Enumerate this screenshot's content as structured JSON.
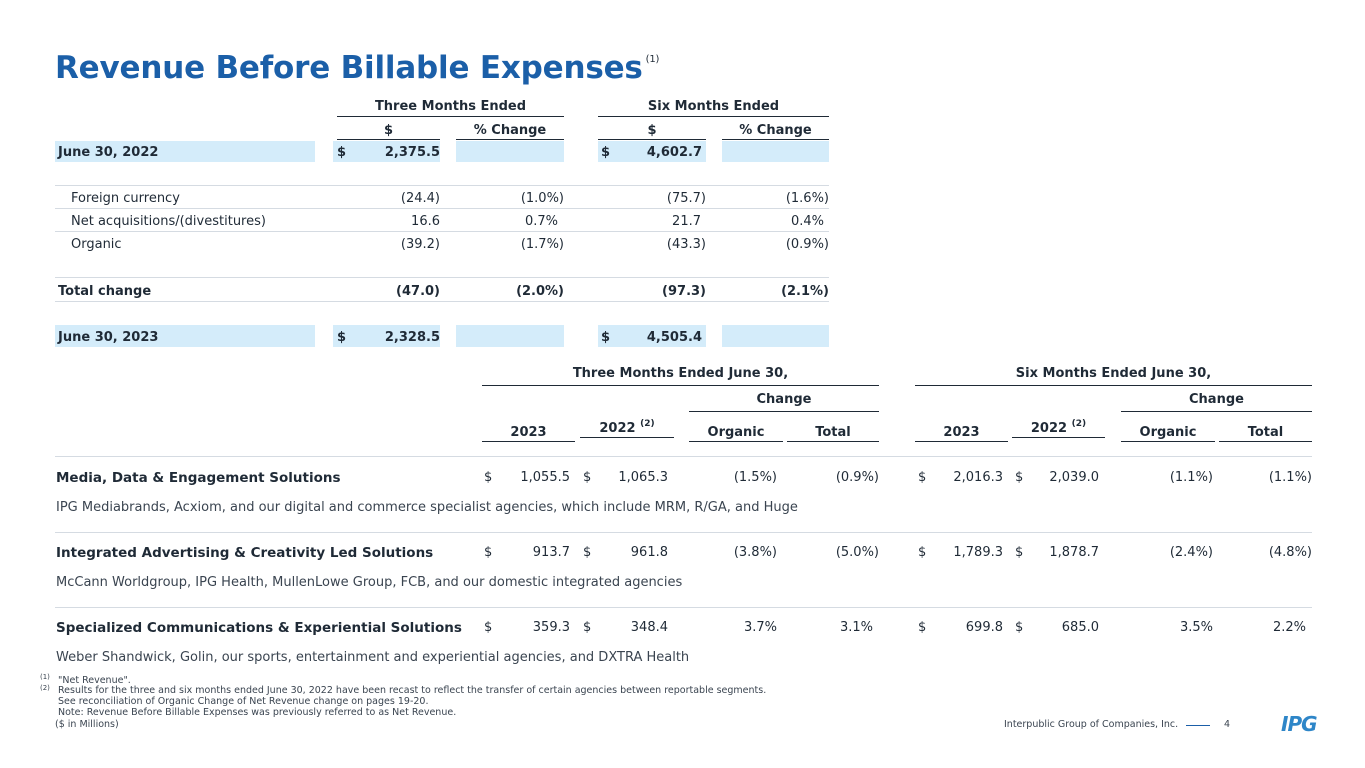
{
  "title": "Revenue Before Billable Expenses",
  "title_note": "(1)",
  "top": {
    "period_three": "Three Months Ended",
    "period_six": "Six Months Ended",
    "col_dollar": "$",
    "col_change": "% Change",
    "rows": [
      {
        "label": "June 30, 2022",
        "currency": "$",
        "v3": "2,375.5",
        "c3": "",
        "currency6": "$",
        "v6": "4,602.7",
        "c6": ""
      },
      {
        "label": "Foreign currency",
        "currency": "",
        "v3": "(24.4)",
        "c3": "(1.0%)",
        "currency6": "",
        "v6": "(75.7)",
        "c6": "(1.6%)"
      },
      {
        "label": "Net acquisitions/(divestitures)",
        "currency": "",
        "v3": "16.6",
        "c3": "0.7%",
        "currency6": "",
        "v6": "21.7",
        "c6": "0.4%"
      },
      {
        "label": "Organic",
        "currency": "",
        "v3": "(39.2)",
        "c3": "(1.7%)",
        "currency6": "",
        "v6": "(43.3)",
        "c6": "(0.9%)"
      },
      {
        "label": "Total change",
        "currency": "",
        "v3": "(47.0)",
        "c3": "(2.0%)",
        "currency6": "",
        "v6": "(97.3)",
        "c6": "(2.1%)"
      },
      {
        "label": "June 30, 2023",
        "currency": "$",
        "v3": "2,328.5",
        "c3": "",
        "currency6": "$",
        "v6": "4,505.4",
        "c6": ""
      }
    ]
  },
  "segments": {
    "period_three": "Three Months Ended June 30,",
    "period_six": "Six Months Ended June 30,",
    "change": "Change",
    "col_2023": "2023",
    "col_2022": "2022",
    "col_2022_note": "(2)",
    "col_organic": "Organic",
    "col_total": "Total",
    "rows": [
      {
        "name": "Media, Data & Engagement Solutions",
        "desc": "IPG Mediabrands, Acxiom, and our digital and commerce specialist agencies, which include MRM, R/GA, and Huge",
        "cur": "$",
        "t2023": "1,055.5",
        "t2022": "1,065.3",
        "torg": "(1.5%)",
        "ttot": "(0.9%)",
        "s2023": "2,016.3",
        "s2022": "2,039.0",
        "sorg": "(1.1%)",
        "stot": "(1.1%)"
      },
      {
        "name": "Integrated Advertising & Creativity Led Solutions",
        "desc": "McCann Worldgroup, IPG Health, MullenLowe Group, FCB, and our domestic integrated agencies",
        "cur": "$",
        "t2023": "913.7",
        "t2022": "961.8",
        "torg": "(3.8%)",
        "ttot": "(5.0%)",
        "s2023": "1,789.3",
        "s2022": "1,878.7",
        "sorg": "(2.4%)",
        "stot": "(4.8%)"
      },
      {
        "name": "Specialized Communications & Experiential Solutions",
        "desc": "Weber Shandwick, Golin, our sports, entertainment and experiential agencies, and DXTRA Health",
        "cur": "$",
        "t2023": "359.3",
        "t2022": "348.4",
        "torg": "3.7%",
        "ttot": "3.1%",
        "s2023": "699.8",
        "s2022": "685.0",
        "sorg": "3.5%",
        "stot": "2.2%"
      }
    ]
  },
  "footnotes": {
    "n1_mark": "(1)",
    "n1": "\"Net Revenue\".",
    "n2_mark": "(2)",
    "n2_line1": "Results for the three and six months ended June 30, 2022 have been recast to reflect the transfer of certain agencies between reportable segments.",
    "n2_line2": "See reconciliation of Organic Change of Net Revenue change on pages 19-20.",
    "n2_line3": "Note: Revenue Before Billable Expenses was previously referred to as Net Revenue.",
    "units": "($ in Millions)"
  },
  "footer": {
    "company": "Interpublic Group of Companies, Inc.",
    "page": "4",
    "logo": "IPG",
    "accent": "#1b5fa8"
  }
}
